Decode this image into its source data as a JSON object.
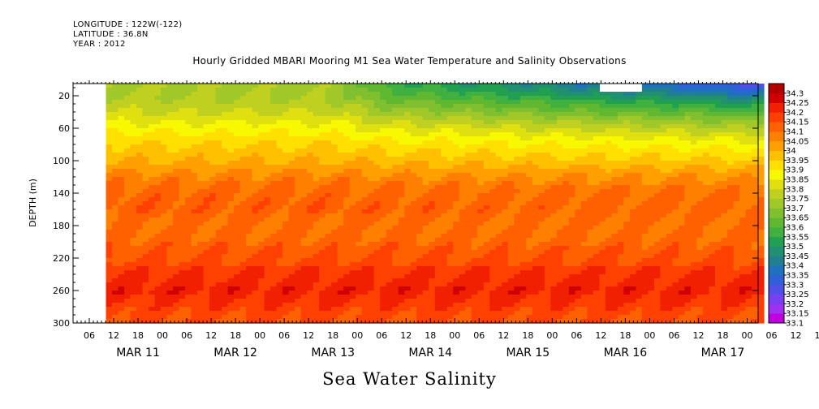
{
  "header": {
    "longitude": "LONGITUDE : 122W(-122)",
    "latitude": "LATITUDE : 36.8N",
    "year": "YEAR : 2012"
  },
  "chart_data": {
    "type": "heatmap",
    "title": "Hourly Gridded MBARI Mooring M1 Sea Water Temperature and Salinity Observations",
    "xlabel": "Sea Water Salinity",
    "ylabel": "DEPTH (m)",
    "y_ticks": [
      20,
      60,
      100,
      140,
      180,
      220,
      260,
      300
    ],
    "ylim": [
      300,
      5
    ],
    "x_hour_labels": [
      "00",
      "06",
      "12",
      "18",
      "00",
      "06",
      "12",
      "18",
      "00",
      "06",
      "12",
      "18",
      "00",
      "06",
      "12",
      "18",
      "00",
      "06",
      "12",
      "18",
      "00",
      "06",
      "12",
      "18",
      "00",
      "06",
      "12",
      "18",
      "00",
      "06",
      "12",
      "18",
      "00",
      "06",
      "12",
      "18"
    ],
    "x_day_labels": [
      "MAR 11",
      "MAR 12",
      "MAR 13",
      "MAR 14",
      "MAR 15",
      "MAR 16",
      "MAR 17"
    ],
    "colorbar": {
      "levels": [
        33.1,
        33.15,
        33.2,
        33.25,
        33.3,
        33.35,
        33.4,
        33.45,
        33.5,
        33.55,
        33.6,
        33.65,
        33.7,
        33.75,
        33.8,
        33.85,
        33.9,
        33.95,
        34,
        34.05,
        34.1,
        34.15,
        34.2,
        34.25,
        34.3
      ],
      "labels": [
        "33.1",
        "33.15",
        "33.2",
        "33.25",
        "33.3",
        "33.35",
        "33.4",
        "33.45",
        "33.5",
        "33.55",
        "33.6",
        "33.65",
        "33.7",
        "33.75",
        "33.8",
        "33.85",
        "33.9",
        "33.95",
        "34",
        "34.05",
        "34.1",
        "34.15",
        "34.2",
        "34.25",
        "34.3"
      ],
      "colors": [
        "#c000e0",
        "#a030f0",
        "#7840f0",
        "#5050e8",
        "#3060d8",
        "#2070c0",
        "#208090",
        "#209070",
        "#20a050",
        "#40b040",
        "#60b830",
        "#80c030",
        "#a0c828",
        "#c0d020",
        "#e0e010",
        "#f8f800",
        "#ffe000",
        "#ffc000",
        "#ffa000",
        "#ff8000",
        "#ff6000",
        "#ff4000",
        "#f02000",
        "#d00000",
        "#b00000"
      ]
    },
    "depth_profile": [
      {
        "depth": 5,
        "value": 33.75
      },
      {
        "depth": 20,
        "value": 33.75
      },
      {
        "depth": 40,
        "value": 33.8
      },
      {
        "depth": 60,
        "value": 33.88
      },
      {
        "depth": 80,
        "value": 33.95
      },
      {
        "depth": 100,
        "value": 34.0
      },
      {
        "depth": 120,
        "value": 34.07
      },
      {
        "depth": 140,
        "value": 34.12
      },
      {
        "depth": 160,
        "value": 34.13
      },
      {
        "depth": 180,
        "value": 34.1
      },
      {
        "depth": 200,
        "value": 34.12
      },
      {
        "depth": 220,
        "value": 34.15
      },
      {
        "depth": 240,
        "value": 34.2
      },
      {
        "depth": 260,
        "value": 34.23
      },
      {
        "depth": 280,
        "value": 34.18
      },
      {
        "depth": 300,
        "value": 34.15
      }
    ],
    "surface_trend": [
      {
        "hour": 0,
        "value": 33.75
      },
      {
        "hour": 60,
        "value": 33.73
      },
      {
        "hour": 72,
        "value": 33.55
      },
      {
        "hour": 96,
        "value": 33.45
      },
      {
        "hour": 120,
        "value": 33.35
      },
      {
        "hour": 150,
        "value": 33.25
      },
      {
        "hour": 162,
        "value": 33.2
      }
    ]
  }
}
